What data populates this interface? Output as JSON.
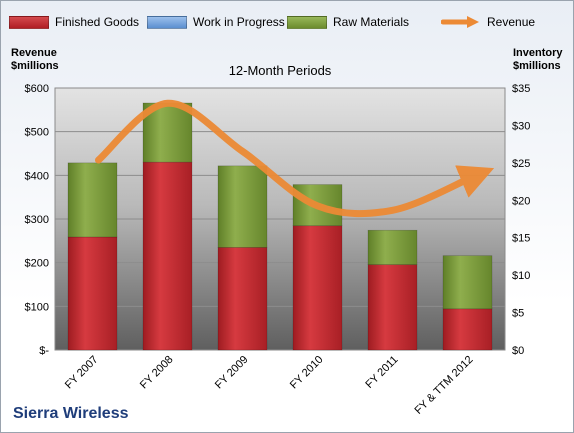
{
  "chart_data": {
    "type": "bar",
    "subtitle": "12-Month Periods",
    "company": "Sierra Wireless",
    "categories": [
      "FY 2007",
      "FY 2008",
      "FY 2009",
      "FY 2010",
      "FY 2011",
      "FY & TTM 2012"
    ],
    "left_axis": {
      "title_line1": "Revenue",
      "title_line2": "$millions",
      "ticks": [
        "$-",
        "$100",
        "$200",
        "$300",
        "$400",
        "$500",
        "$600"
      ],
      "range": [
        0,
        600
      ]
    },
    "right_axis": {
      "title_line1": "Inventory",
      "title_line2": "$millions",
      "ticks": [
        "$0",
        "$5",
        "$10",
        "$15",
        "$20",
        "$25",
        "$30",
        "$35"
      ],
      "range": [
        0,
        35
      ]
    },
    "series": [
      {
        "name": "Finished Goods",
        "type": "stacked-bar",
        "axis": "right",
        "color": "#c0262c",
        "values": [
          15.1,
          25.1,
          13.7,
          16.6,
          11.4,
          5.5
        ]
      },
      {
        "name": "Work in Progress",
        "type": "stacked-bar",
        "axis": "right",
        "color": "#6f9fd8",
        "values": [
          0,
          0,
          0,
          0,
          0,
          0
        ]
      },
      {
        "name": "Raw Materials",
        "type": "stacked-bar",
        "axis": "right",
        "color": "#7a9a3a",
        "values": [
          9.9,
          7.9,
          10.9,
          5.5,
          4.6,
          7.1
        ]
      },
      {
        "name": "Revenue",
        "type": "line",
        "axis": "left",
        "color": "#ec8a35",
        "values": [
          435,
          565,
          455,
          330,
          320,
          395
        ]
      }
    ],
    "grid": true,
    "legend_position": "top"
  }
}
